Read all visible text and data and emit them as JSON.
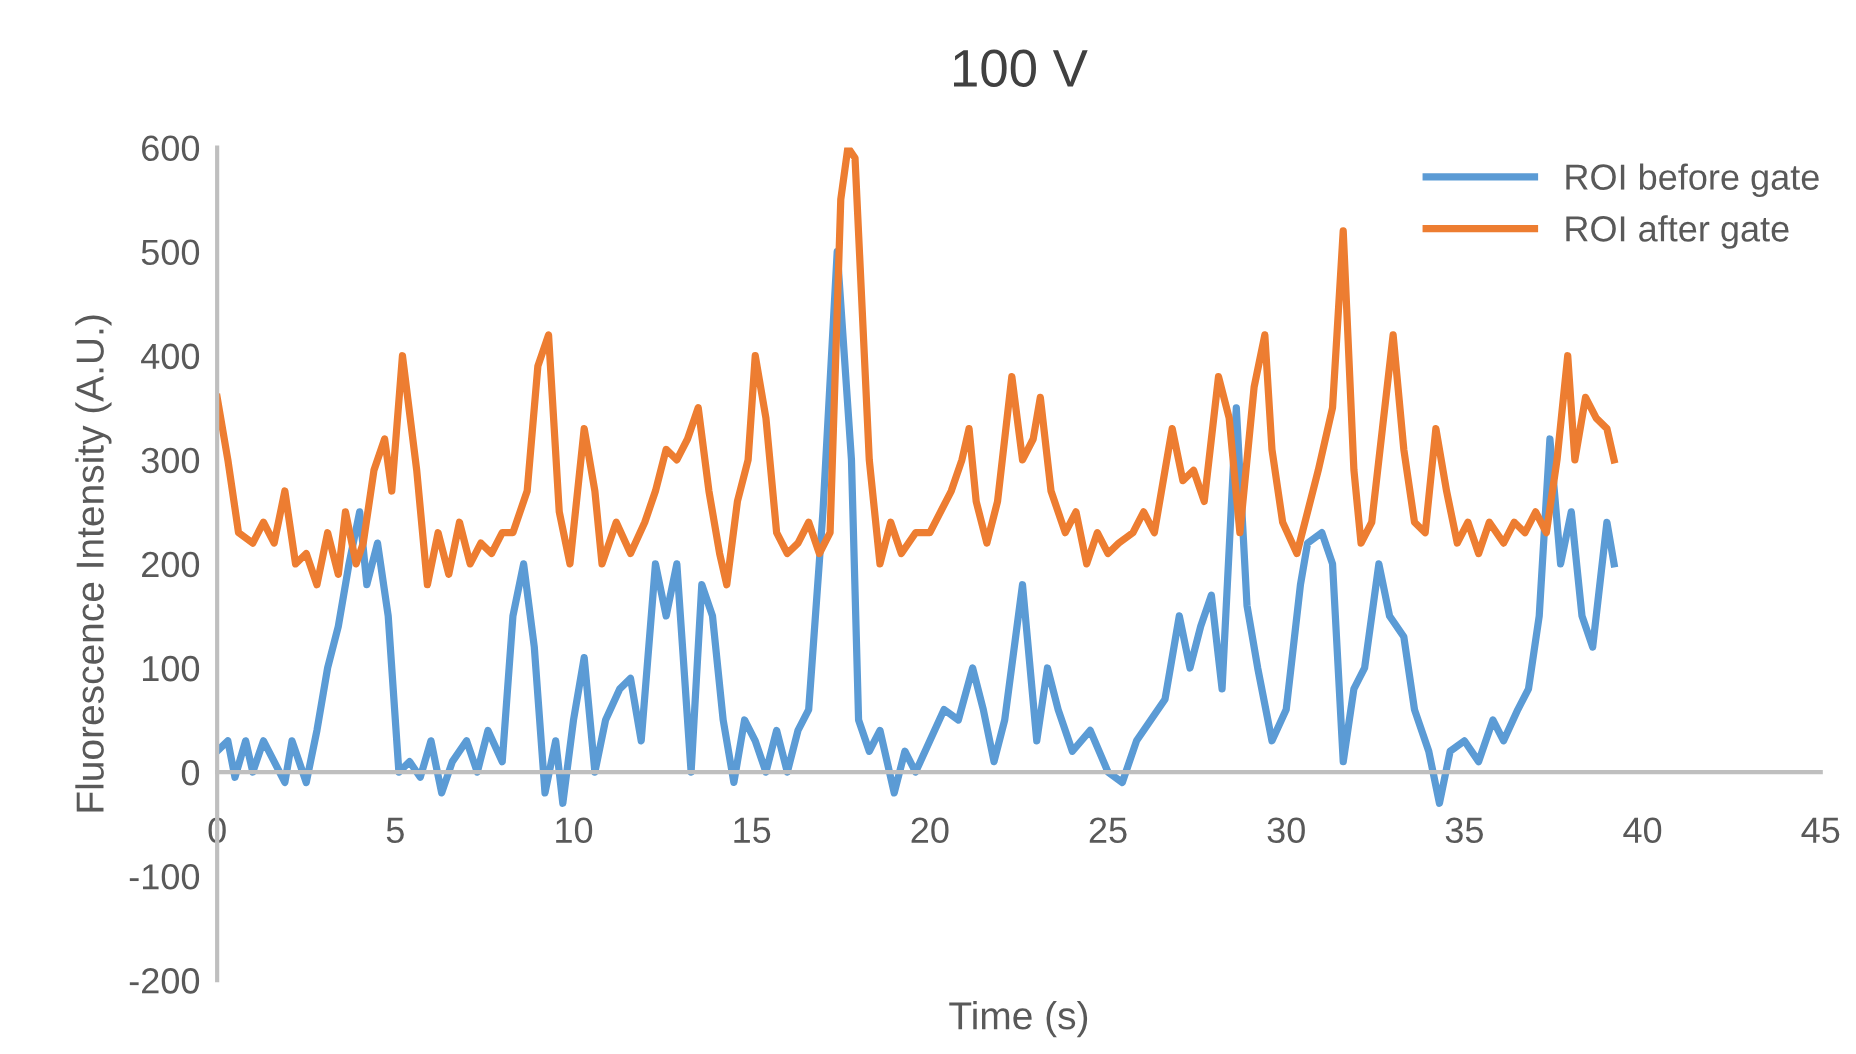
{
  "chart_data": {
    "type": "line",
    "title": "100 V",
    "xlabel": "Time (s)",
    "ylabel": "Fluorescence Intensity (A.U.)",
    "xlim": [
      0,
      45
    ],
    "xticks": [
      0,
      5,
      10,
      15,
      20,
      25,
      30,
      35,
      40,
      45
    ],
    "ylim": [
      -200,
      600
    ],
    "yticks": [
      -200,
      -100,
      0,
      100,
      200,
      300,
      400,
      500,
      600
    ],
    "grid": false,
    "legend": "top right",
    "marker": "none",
    "line_style": "solid",
    "series": [
      {
        "name": "ROI before gate",
        "color": "#5b9bd5",
        "x": [
          0,
          0.3,
          0.5,
          0.8,
          1.0,
          1.3,
          1.6,
          1.9,
          2.1,
          2.5,
          2.8,
          3.1,
          3.4,
          3.7,
          4.0,
          4.2,
          4.5,
          4.8,
          5.1,
          5.4,
          5.7,
          6.0,
          6.3,
          6.6,
          7.0,
          7.3,
          7.6,
          8.0,
          8.3,
          8.6,
          8.9,
          9.2,
          9.5,
          9.7,
          10.0,
          10.3,
          10.6,
          10.9,
          11.3,
          11.6,
          11.9,
          12.3,
          12.6,
          12.9,
          13.3,
          13.6,
          13.9,
          14.2,
          14.5,
          14.8,
          15.1,
          15.4,
          15.7,
          16.0,
          16.3,
          16.6,
          17.0,
          17.4,
          17.8,
          18.0,
          18.3,
          18.6,
          19.0,
          19.3,
          19.6,
          20.0,
          20.4,
          20.8,
          21.2,
          21.5,
          21.8,
          22.1,
          22.6,
          23.0,
          23.3,
          23.6,
          24.0,
          24.5,
          25.0,
          25.4,
          25.8,
          26.2,
          26.6,
          27.0,
          27.3,
          27.6,
          27.9,
          28.2,
          28.6,
          28.9,
          29.2,
          29.6,
          30.0,
          30.4,
          30.6,
          31.0,
          31.3,
          31.6,
          31.9,
          32.2,
          32.6,
          32.9,
          33.3,
          33.6,
          34.0,
          34.3,
          34.6,
          35.0,
          35.4,
          35.8,
          36.1,
          36.5,
          36.8,
          37.1,
          37.4,
          37.7,
          38.0,
          38.3,
          38.6,
          39.0,
          39.2
        ],
        "values": [
          20,
          30,
          -5,
          30,
          0,
          30,
          10,
          -10,
          30,
          -10,
          40,
          100,
          140,
          200,
          250,
          180,
          220,
          150,
          0,
          10,
          -5,
          30,
          -20,
          10,
          30,
          0,
          40,
          10,
          150,
          200,
          120,
          -20,
          30,
          -30,
          50,
          110,
          0,
          50,
          80,
          90,
          30,
          200,
          150,
          200,
          0,
          180,
          150,
          50,
          -10,
          50,
          30,
          0,
          40,
          0,
          40,
          60,
          250,
          500,
          300,
          50,
          20,
          40,
          -20,
          20,
          0,
          30,
          60,
          50,
          100,
          60,
          10,
          50,
          180,
          30,
          100,
          60,
          20,
          40,
          0,
          -10,
          30,
          50,
          70,
          150,
          100,
          140,
          170,
          80,
          350,
          160,
          100,
          30,
          60,
          180,
          220,
          230,
          200,
          10,
          80,
          100,
          200,
          150,
          130,
          60,
          20,
          -30,
          20,
          30,
          10,
          50,
          30,
          60,
          80,
          150,
          320,
          200,
          250,
          150,
          120,
          240,
          200
        ]
      },
      {
        "name": "ROI after gate",
        "color": "#ed7d31",
        "x": [
          0,
          0.3,
          0.6,
          1.0,
          1.3,
          1.6,
          1.9,
          2.2,
          2.5,
          2.8,
          3.1,
          3.4,
          3.6,
          3.9,
          4.1,
          4.4,
          4.7,
          4.9,
          5.2,
          5.6,
          5.9,
          6.2,
          6.5,
          6.8,
          7.1,
          7.4,
          7.7,
          8.0,
          8.3,
          8.7,
          9.0,
          9.3,
          9.6,
          9.9,
          10.3,
          10.6,
          10.8,
          11.2,
          11.6,
          12.0,
          12.3,
          12.6,
          12.9,
          13.2,
          13.5,
          13.8,
          14.1,
          14.3,
          14.6,
          14.9,
          15.1,
          15.4,
          15.7,
          16.0,
          16.3,
          16.6,
          16.9,
          17.2,
          17.5,
          17.7,
          17.9,
          18.3,
          18.6,
          18.9,
          19.2,
          19.6,
          20.0,
          20.3,
          20.6,
          20.9,
          21.1,
          21.3,
          21.6,
          21.9,
          22.3,
          22.6,
          22.9,
          23.1,
          23.4,
          23.8,
          24.1,
          24.4,
          24.7,
          25.0,
          25.3,
          25.7,
          26.0,
          26.3,
          26.6,
          26.8,
          27.1,
          27.4,
          27.7,
          28.1,
          28.4,
          28.7,
          29.1,
          29.4,
          29.6,
          29.9,
          30.3,
          30.6,
          30.9,
          31.3,
          31.6,
          31.9,
          32.1,
          32.4,
          32.7,
          33.0,
          33.3,
          33.6,
          33.9,
          34.2,
          34.5,
          34.8,
          35.1,
          35.4,
          35.7,
          36.1,
          36.4,
          36.7,
          37.0,
          37.3,
          37.6,
          37.9,
          38.1,
          38.4,
          38.7,
          39.0,
          39.2
        ],
        "values": [
          360,
          300,
          230,
          220,
          240,
          220,
          270,
          200,
          210,
          180,
          230,
          190,
          250,
          200,
          220,
          290,
          320,
          270,
          400,
          290,
          180,
          230,
          190,
          240,
          200,
          220,
          210,
          230,
          230,
          270,
          390,
          420,
          250,
          200,
          330,
          270,
          200,
          240,
          210,
          240,
          270,
          310,
          300,
          320,
          350,
          270,
          210,
          180,
          260,
          300,
          400,
          340,
          230,
          210,
          220,
          240,
          210,
          230,
          550,
          600,
          590,
          300,
          200,
          240,
          210,
          230,
          230,
          250,
          270,
          300,
          330,
          260,
          220,
          260,
          380,
          300,
          320,
          360,
          270,
          230,
          250,
          200,
          230,
          210,
          220,
          230,
          250,
          230,
          290,
          330,
          280,
          290,
          260,
          380,
          340,
          230,
          370,
          420,
          310,
          240,
          210,
          250,
          290,
          350,
          520,
          290,
          220,
          240,
          330,
          420,
          310,
          240,
          230,
          330,
          270,
          220,
          240,
          210,
          240,
          220,
          240,
          230,
          250,
          230,
          300,
          400,
          300,
          360,
          340,
          330,
          300
        ]
      }
    ]
  }
}
